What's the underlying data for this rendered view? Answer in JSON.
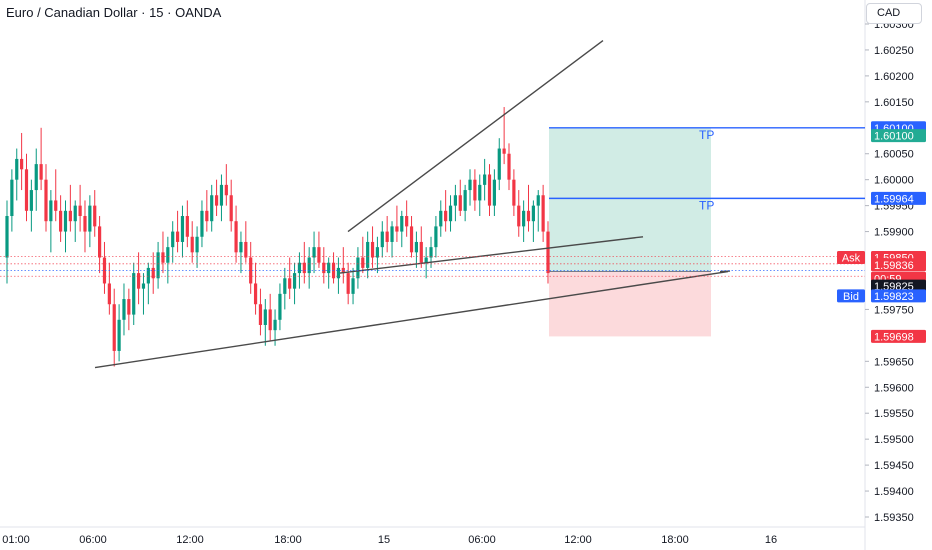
{
  "header": {
    "symbol_title": "Euro / Canadian Dollar · 15 · OANDA",
    "currency_button": "CAD"
  },
  "chart_data": {
    "type": "candlestick",
    "title": "Euro / Canadian Dollar · 15 · OANDA",
    "currency": "CAD",
    "ylim": [
      1.5932,
      1.6034
    ],
    "y_ticks": [
      "1.60300",
      "1.60250",
      "1.60200",
      "1.60150",
      "1.60050",
      "1.60000",
      "1.59950",
      "1.59900",
      "1.59750",
      "1.59650",
      "1.59600",
      "1.59550",
      "1.59500",
      "1.59450",
      "1.59400",
      "1.59350"
    ],
    "x_ticks": [
      "01:00",
      "06:00",
      "12:00",
      "18:00",
      "15",
      "06:00",
      "12:00",
      "18:00",
      "16"
    ],
    "price_tags": [
      {
        "label": "",
        "value": "1.60100",
        "price": 1.601,
        "color": "#2962ff"
      },
      {
        "label": "",
        "value": "1.60100",
        "price": 1.60085,
        "color": "#22ab94"
      },
      {
        "label": "",
        "value": "1.59964",
        "price": 1.59964,
        "color": "#2962ff"
      },
      {
        "label": "Ask",
        "value": "1.59850",
        "price": 1.5985,
        "color": "#f23645"
      },
      {
        "label": "",
        "value": "1.59836",
        "price": 1.59836,
        "color": "#f23645"
      },
      {
        "label": "",
        "value": "00:59",
        "price": 1.5981,
        "color": "#f23645"
      },
      {
        "label": "",
        "value": "1.59825",
        "price": 1.59795,
        "color": "#131722"
      },
      {
        "label": "Bid",
        "value": "1.59823",
        "price": 1.59776,
        "color": "#2962ff"
      },
      {
        "label": "",
        "value": "1.59698",
        "price": 1.59698,
        "color": "#f23645"
      }
    ],
    "position": {
      "entry": 1.59823,
      "take_profit_1": 1.601,
      "take_profit_2": 1.59964,
      "stop_loss": 1.59698,
      "tp_label": "TP"
    },
    "colors": {
      "up": "#089981",
      "down": "#f23645",
      "profit_zone": "#d1ece5",
      "loss_zone": "#fcdadc",
      "tp_line": "#2962ff",
      "trendline": "#4a4a4a"
    },
    "candles": [
      [
        1.5985,
        1.5996,
        1.598,
        1.5993
      ],
      [
        1.5993,
        1.6002,
        1.599,
        1.6
      ],
      [
        1.6,
        1.6006,
        1.5996,
        1.6004
      ],
      [
        1.6004,
        1.6009,
        1.5998,
        1.6002
      ],
      [
        1.6002,
        1.6005,
        1.5992,
        1.5994
      ],
      [
        1.5994,
        1.6,
        1.599,
        1.5998
      ],
      [
        1.5998,
        1.6006,
        1.5994,
        1.6003
      ],
      [
        1.6003,
        1.601,
        1.5998,
        1.6
      ],
      [
        1.6,
        1.6003,
        1.599,
        1.5992
      ],
      [
        1.5992,
        1.5998,
        1.5986,
        1.5996
      ],
      [
        1.5996,
        1.6002,
        1.5992,
        1.5994
      ],
      [
        1.5994,
        1.5997,
        1.5988,
        1.599
      ],
      [
        1.599,
        1.5996,
        1.5986,
        1.5994
      ],
      [
        1.5994,
        1.5999,
        1.599,
        1.5992
      ],
      [
        1.5992,
        1.5996,
        1.5988,
        1.5995
      ],
      [
        1.5995,
        1.5999,
        1.599,
        1.5993
      ],
      [
        1.5993,
        1.5996,
        1.5986,
        1.599
      ],
      [
        1.599,
        1.5997,
        1.5987,
        1.5995
      ],
      [
        1.5995,
        1.5998,
        1.5989,
        1.5991
      ],
      [
        1.5991,
        1.5993,
        1.5982,
        1.5985
      ],
      [
        1.5985,
        1.5988,
        1.5978,
        1.598
      ],
      [
        1.598,
        1.5984,
        1.5974,
        1.5976
      ],
      [
        1.5976,
        1.5979,
        1.5964,
        1.5967
      ],
      [
        1.5967,
        1.5976,
        1.5965,
        1.5973
      ],
      [
        1.5973,
        1.598,
        1.597,
        1.5977
      ],
      [
        1.5977,
        1.5979,
        1.5971,
        1.5974
      ],
      [
        1.5974,
        1.5984,
        1.5972,
        1.5982
      ],
      [
        1.5982,
        1.5986,
        1.5976,
        1.5979
      ],
      [
        1.5979,
        1.5982,
        1.5974,
        1.598
      ],
      [
        1.598,
        1.5984,
        1.5976,
        1.5983
      ],
      [
        1.5983,
        1.5986,
        1.5978,
        1.5981
      ],
      [
        1.5981,
        1.5988,
        1.5979,
        1.5986
      ],
      [
        1.5986,
        1.599,
        1.5982,
        1.5984
      ],
      [
        1.5984,
        1.5989,
        1.598,
        1.5987
      ],
      [
        1.5987,
        1.5992,
        1.5984,
        1.599
      ],
      [
        1.599,
        1.5994,
        1.5986,
        1.5988
      ],
      [
        1.5988,
        1.5995,
        1.5985,
        1.5993
      ],
      [
        1.5993,
        1.5996,
        1.5987,
        1.5989
      ],
      [
        1.5989,
        1.5992,
        1.5984,
        1.5986
      ],
      [
        1.5986,
        1.5991,
        1.5983,
        1.5989
      ],
      [
        1.5989,
        1.5996,
        1.5987,
        1.5994
      ],
      [
        1.5994,
        1.5998,
        1.599,
        1.5992
      ],
      [
        1.5992,
        1.5999,
        1.599,
        1.5997
      ],
      [
        1.5997,
        1.6,
        1.5993,
        1.5995
      ],
      [
        1.5995,
        1.6001,
        1.5992,
        1.5999
      ],
      [
        1.5999,
        1.6003,
        1.5995,
        1.5997
      ],
      [
        1.5997,
        1.6,
        1.599,
        1.5992
      ],
      [
        1.5992,
        1.5995,
        1.5984,
        1.5986
      ],
      [
        1.5986,
        1.599,
        1.5982,
        1.5988
      ],
      [
        1.5988,
        1.5992,
        1.5984,
        1.5985
      ],
      [
        1.5985,
        1.5988,
        1.5978,
        1.598
      ],
      [
        1.598,
        1.5984,
        1.5974,
        1.5976
      ],
      [
        1.5976,
        1.5979,
        1.597,
        1.5972
      ],
      [
        1.5972,
        1.5977,
        1.5968,
        1.5975
      ],
      [
        1.5975,
        1.5978,
        1.5969,
        1.5971
      ],
      [
        1.5971,
        1.5975,
        1.5968,
        1.5973
      ],
      [
        1.5973,
        1.598,
        1.5971,
        1.5978
      ],
      [
        1.5978,
        1.5983,
        1.5975,
        1.5981
      ],
      [
        1.5981,
        1.5985,
        1.5977,
        1.5979
      ],
      [
        1.5979,
        1.5984,
        1.5976,
        1.5982
      ],
      [
        1.5982,
        1.5986,
        1.5979,
        1.5984
      ],
      [
        1.5984,
        1.5988,
        1.598,
        1.5982
      ],
      [
        1.5982,
        1.5987,
        1.5979,
        1.5985
      ],
      [
        1.5985,
        1.599,
        1.5982,
        1.5987
      ],
      [
        1.5987,
        1.599,
        1.5983,
        1.5984
      ],
      [
        1.5984,
        1.5987,
        1.598,
        1.5982
      ],
      [
        1.5982,
        1.5985,
        1.5979,
        1.5984
      ],
      [
        1.5984,
        1.5986,
        1.598,
        1.5981
      ],
      [
        1.5981,
        1.5985,
        1.5978,
        1.5983
      ],
      [
        1.5983,
        1.5987,
        1.598,
        1.5982
      ],
      [
        1.5982,
        1.5984,
        1.5976,
        1.5978
      ],
      [
        1.5978,
        1.5983,
        1.5976,
        1.5981
      ],
      [
        1.5981,
        1.5987,
        1.5979,
        1.5985
      ],
      [
        1.5985,
        1.5989,
        1.5982,
        1.5983
      ],
      [
        1.5983,
        1.599,
        1.5981,
        1.5988
      ],
      [
        1.5988,
        1.5991,
        1.5983,
        1.5985
      ],
      [
        1.5985,
        1.5989,
        1.5982,
        1.5987
      ],
      [
        1.5987,
        1.5992,
        1.5985,
        1.599
      ],
      [
        1.599,
        1.5993,
        1.5986,
        1.5988
      ],
      [
        1.5988,
        1.5992,
        1.5985,
        1.5991
      ],
      [
        1.5991,
        1.5995,
        1.5988,
        1.599
      ],
      [
        1.599,
        1.5994,
        1.5987,
        1.5993
      ],
      [
        1.5993,
        1.5996,
        1.5989,
        1.5991
      ],
      [
        1.5991,
        1.5993,
        1.5985,
        1.5986
      ],
      [
        1.5986,
        1.599,
        1.5983,
        1.5988
      ],
      [
        1.5988,
        1.5991,
        1.5983,
        1.5984
      ],
      [
        1.5984,
        1.5987,
        1.5981,
        1.5985
      ],
      [
        1.5985,
        1.5989,
        1.5983,
        1.5987
      ],
      [
        1.5987,
        1.5993,
        1.5985,
        1.5991
      ],
      [
        1.5991,
        1.5996,
        1.5989,
        1.5994
      ],
      [
        1.5994,
        1.5998,
        1.599,
        1.5992
      ],
      [
        1.5992,
        1.5997,
        1.599,
        1.5995
      ],
      [
        1.5995,
        1.5999,
        1.5992,
        1.5997
      ],
      [
        1.5997,
        1.6,
        1.5993,
        1.5994
      ],
      [
        1.5994,
        1.5999,
        1.5992,
        1.5998
      ],
      [
        1.5998,
        1.6002,
        1.5995,
        1.6
      ],
      [
        1.6,
        1.6002,
        1.5994,
        1.5996
      ],
      [
        1.5996,
        1.6001,
        1.5993,
        1.5999
      ],
      [
        1.5999,
        1.6004,
        1.5996,
        1.6001
      ],
      [
        1.6001,
        1.6003,
        1.5993,
        1.5995
      ],
      [
        1.5995,
        1.6002,
        1.5993,
        1.6
      ],
      [
        1.6,
        1.6008,
        1.5998,
        1.6006
      ],
      [
        1.6006,
        1.6014,
        1.6003,
        1.6005
      ],
      [
        1.6005,
        1.6007,
        1.5998,
        1.6
      ],
      [
        1.6,
        1.6002,
        1.5993,
        1.5995
      ],
      [
        1.5995,
        1.5998,
        1.5989,
        1.5991
      ],
      [
        1.5991,
        1.5996,
        1.5988,
        1.5994
      ],
      [
        1.5994,
        1.5999,
        1.599,
        1.5992
      ],
      [
        1.5992,
        1.5996,
        1.5988,
        1.5995
      ],
      [
        1.5995,
        1.5998,
        1.599,
        1.5997
      ],
      [
        1.5997,
        1.5999,
        1.5988,
        1.599
      ],
      [
        1.599,
        1.5992,
        1.598,
        1.5982
      ]
    ],
    "trendlines": [
      {
        "name": "lower-support-trendline",
        "from": [
          95,
          1.59638
        ],
        "to": [
          728,
          1.59823
        ]
      },
      {
        "name": "upper-channel-trendline",
        "from": [
          348,
          1.599
        ],
        "to": [
          603,
          1.60268
        ]
      },
      {
        "name": "middle-channel-trendline",
        "from": [
          340,
          1.5982
        ],
        "to": [
          643,
          1.5989
        ]
      },
      {
        "name": "short-support-line",
        "from": [
          720,
          1.59823
        ],
        "to": [
          730,
          1.59824
        ]
      }
    ]
  }
}
